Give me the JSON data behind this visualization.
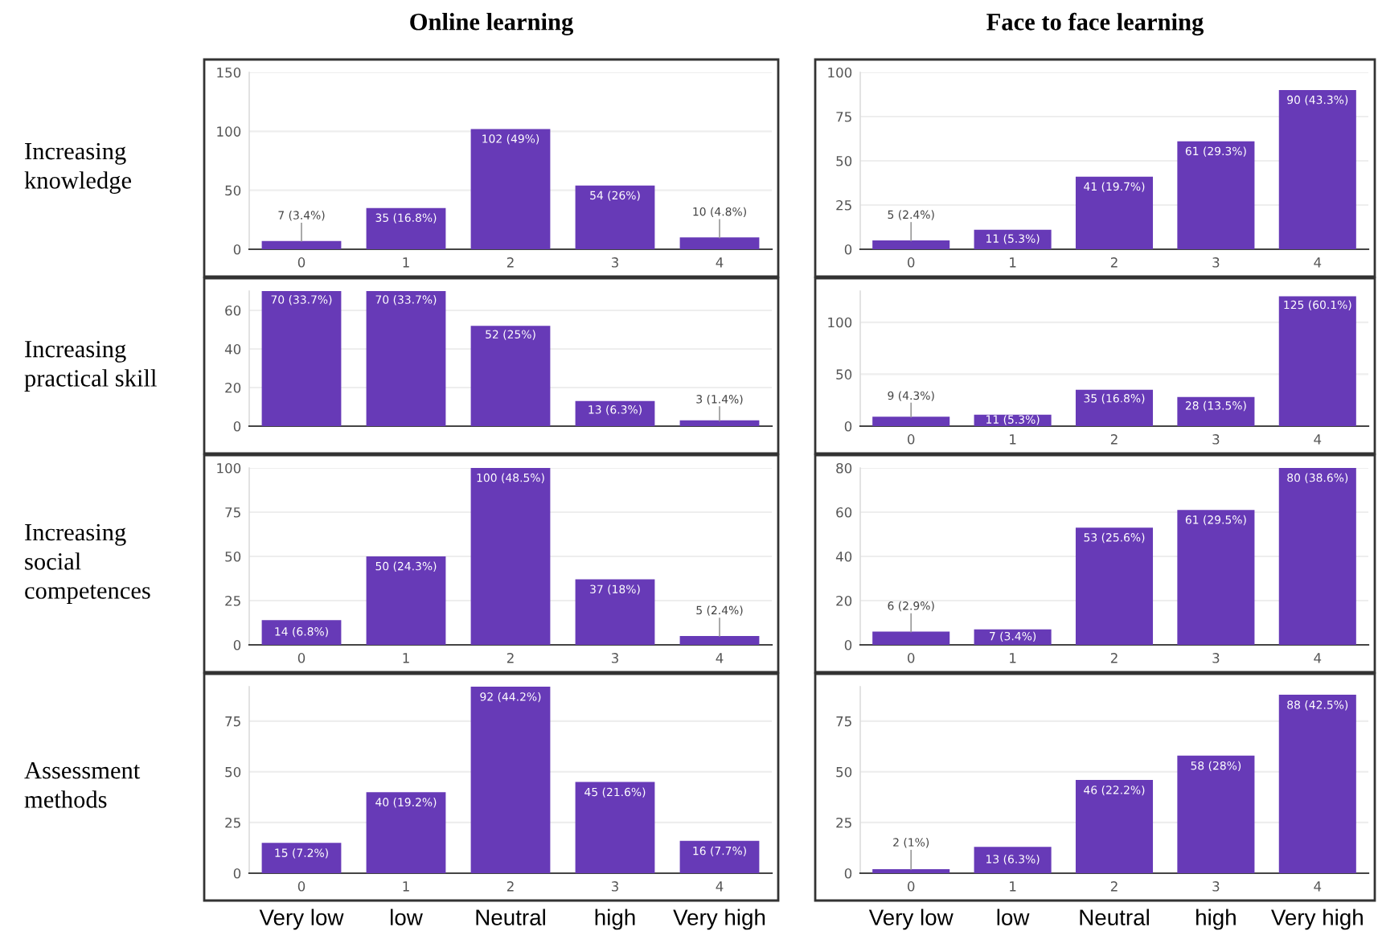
{
  "chart_data": [
    {
      "type": "bar",
      "title": "Online learning",
      "ylabel": "Increasing\nknowledge",
      "categories": [
        "0",
        "1",
        "2",
        "3",
        "4"
      ],
      "values": [
        7,
        35,
        102,
        54,
        10
      ],
      "value_labels": [
        "7 (3.4%)",
        "35 (16.8%)",
        "102 (49%)",
        "54 (26%)",
        "10 (4.8%)"
      ],
      "color": "#673ab7",
      "ylim": [
        0,
        150
      ],
      "yticks": [
        0,
        50,
        100,
        150
      ],
      "grid": "y"
    },
    {
      "type": "bar",
      "title": "Face to face learning",
      "categories": [
        "0",
        "1",
        "2",
        "3",
        "4"
      ],
      "values": [
        5,
        11,
        41,
        61,
        90
      ],
      "value_labels": [
        "5 (2.4%)",
        "11 (5.3%)",
        "41 (19.7%)",
        "61 (29.3%)",
        "90 (43.3%)"
      ],
      "color": "#673ab7",
      "ylim": [
        0,
        100
      ],
      "yticks": [
        0,
        25,
        50,
        75,
        100
      ],
      "grid": "y"
    },
    {
      "type": "bar",
      "ylabel": "Increasing\npractical skill",
      "categories": [
        "0",
        "1",
        "2",
        "3",
        "4"
      ],
      "values": [
        70,
        70,
        52,
        13,
        3
      ],
      "value_labels": [
        "70 (33.7%)",
        "70 (33.7%)",
        "52 (25%)",
        "13 (6.3%)",
        "3 (1.4%)"
      ],
      "color": "#673ab7",
      "ylim": [
        0,
        70
      ],
      "yticks": [
        0,
        20,
        40,
        60
      ],
      "grid": "y",
      "tick_labels": "y"
    },
    {
      "type": "bar",
      "categories": [
        "0",
        "1",
        "2",
        "3",
        "4"
      ],
      "values": [
        9,
        11,
        35,
        28,
        125
      ],
      "value_labels": [
        "9 (4.3%)",
        "11 (5.3%)",
        "35 (16.8%)",
        "28 (13.5%)",
        "125 (60.1%)"
      ],
      "color": "#673ab7",
      "ylim": [
        0,
        130
      ],
      "yticks": [
        0,
        50,
        100
      ],
      "grid": "y"
    },
    {
      "type": "bar",
      "ylabel": "Increasing\nsocial\ncompetences",
      "categories": [
        "0",
        "1",
        "2",
        "3",
        "4"
      ],
      "values": [
        14,
        50,
        100,
        37,
        5
      ],
      "value_labels": [
        "14 (6.8%)",
        "50 (24.3%)",
        "100 (48.5%)",
        "37 (18%)",
        "5 (2.4%)"
      ],
      "color": "#673ab7",
      "ylim": [
        0,
        100
      ],
      "yticks": [
        0,
        25,
        50,
        75,
        100
      ],
      "grid": "y"
    },
    {
      "type": "bar",
      "categories": [
        "0",
        "1",
        "2",
        "3",
        "4"
      ],
      "values": [
        6,
        7,
        53,
        61,
        80
      ],
      "value_labels": [
        "6 (2.9%)",
        "7 (3.4%)",
        "53 (25.6%)",
        "61 (29.5%)",
        "80 (38.6%)"
      ],
      "color": "#673ab7",
      "ylim": [
        0,
        80
      ],
      "yticks": [
        0,
        20,
        40,
        60,
        80
      ],
      "grid": "y"
    },
    {
      "type": "bar",
      "ylabel": "Assessment\nmethods",
      "categories": [
        "0",
        "1",
        "2",
        "3",
        "4"
      ],
      "values": [
        15,
        40,
        92,
        45,
        16
      ],
      "value_labels": [
        "15 (7.2%)",
        "40 (19.2%)",
        "92 (44.2%)",
        "45 (21.6%)",
        "16 (7.7%)"
      ],
      "color": "#673ab7",
      "ylim": [
        0,
        92
      ],
      "yticks": [
        0,
        25,
        50,
        75
      ],
      "grid": "y",
      "annotations": [
        "Very low",
        "low",
        "Neutral",
        "high",
        "Very high"
      ]
    },
    {
      "type": "bar",
      "categories": [
        "0",
        "1",
        "2",
        "3",
        "4"
      ],
      "values": [
        2,
        13,
        46,
        58,
        88
      ],
      "value_labels": [
        "2 (1%)",
        "13 (6.3%)",
        "46 (22.2%)",
        "58 (28%)",
        "88 (42.5%)"
      ],
      "color": "#673ab7",
      "ylim": [
        0,
        92
      ],
      "yticks": [
        0,
        25,
        50,
        75
      ],
      "grid": "y",
      "annotations": [
        "Very low",
        "low",
        "Neutral",
        "high",
        "Very high"
      ]
    }
  ]
}
